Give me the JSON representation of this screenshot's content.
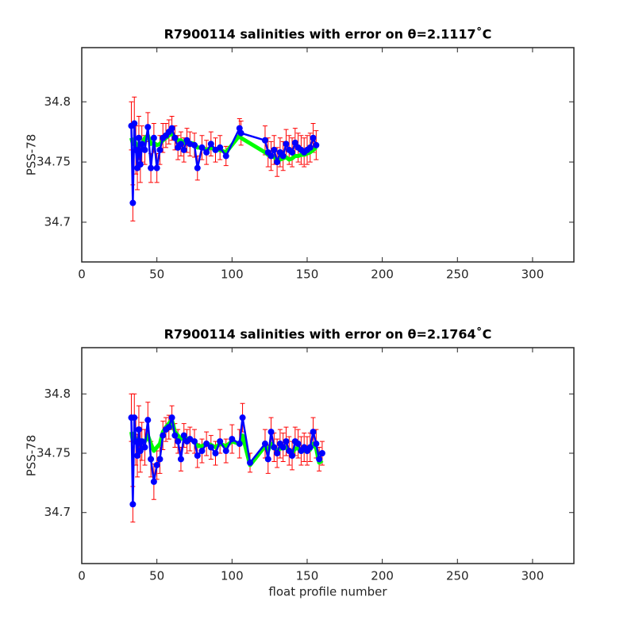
{
  "chart_data": [
    {
      "type": "line",
      "title": "R7900114 salinities with error on θ=2.1117˚C",
      "ylabel": "PSS-78",
      "x": [
        33,
        34,
        35,
        36,
        37,
        38,
        39,
        40,
        42,
        44,
        46,
        48,
        50,
        52,
        54,
        56,
        58,
        60,
        62,
        64,
        66,
        68,
        70,
        72,
        75,
        77,
        80,
        83,
        86,
        89,
        92,
        96,
        105,
        106,
        122,
        124,
        126,
        128,
        130,
        132,
        134,
        136,
        138,
        140,
        142,
        144,
        146,
        148,
        150,
        152,
        154,
        156
      ],
      "series": [
        {
          "color": "#00ff00",
          "values": [
            34.77,
            34.765,
            34.768,
            34.765,
            34.762,
            34.765,
            34.764,
            34.765,
            34.77,
            34.772,
            34.765,
            34.766,
            34.764,
            34.765,
            34.768,
            34.77,
            34.772,
            34.774,
            34.77,
            34.768,
            34.768,
            34.766,
            34.768,
            34.766,
            34.765,
            34.762,
            34.762,
            34.76,
            34.762,
            34.76,
            34.76,
            34.758,
            34.772,
            34.77,
            34.758,
            34.756,
            34.755,
            34.754,
            34.752,
            34.752,
            34.753,
            34.754,
            34.752,
            34.753,
            34.755,
            34.755,
            34.756,
            34.756,
            34.757,
            34.758,
            34.76,
            34.762
          ]
        },
        {
          "color": "#0000ff",
          "error_color": "#ff0000",
          "values": [
            34.78,
            34.716,
            34.782,
            34.76,
            34.745,
            34.77,
            34.748,
            34.765,
            34.76,
            34.779,
            34.745,
            34.77,
            34.745,
            34.76,
            34.77,
            34.772,
            34.775,
            34.778,
            34.77,
            34.762,
            34.765,
            34.76,
            34.768,
            34.765,
            34.764,
            34.745,
            34.762,
            34.758,
            34.765,
            34.76,
            34.762,
            34.755,
            34.778,
            34.774,
            34.768,
            34.758,
            34.755,
            34.76,
            34.75,
            34.758,
            34.755,
            34.765,
            34.76,
            34.758,
            34.766,
            34.762,
            34.76,
            34.758,
            34.76,
            34.762,
            34.77,
            34.764
          ],
          "errors": [
            0.02,
            0.015,
            0.022,
            0.02,
            0.018,
            0.018,
            0.015,
            0.015,
            0.012,
            0.012,
            0.012,
            0.012,
            0.012,
            0.012,
            0.012,
            0.01,
            0.01,
            0.01,
            0.01,
            0.01,
            0.01,
            0.01,
            0.01,
            0.01,
            0.01,
            0.01,
            0.01,
            0.01,
            0.01,
            0.01,
            0.01,
            0.008,
            0.008,
            0.01,
            0.012,
            0.012,
            0.012,
            0.012,
            0.012,
            0.012,
            0.012,
            0.012,
            0.012,
            0.012,
            0.012,
            0.012,
            0.012,
            0.012,
            0.012,
            0.012,
            0.012,
            0.012
          ]
        }
      ],
      "xlim": [
        0,
        327.5
      ],
      "xticks": [
        0,
        50,
        100,
        150,
        200,
        250,
        300
      ],
      "ylim": [
        34.667,
        34.845
      ],
      "yticks": [
        34.7,
        34.75,
        34.8
      ]
    },
    {
      "type": "line",
      "title": "R7900114 salinities with error on θ=2.1764˚C",
      "ylabel": "PSS-78",
      "xlabel": "float profile number",
      "x": [
        33,
        34,
        35,
        36,
        37,
        38,
        39,
        40,
        42,
        44,
        46,
        48,
        50,
        52,
        54,
        56,
        58,
        60,
        62,
        64,
        66,
        68,
        70,
        72,
        75,
        77,
        80,
        83,
        86,
        89,
        92,
        96,
        100,
        105,
        107,
        112,
        122,
        124,
        126,
        128,
        130,
        132,
        134,
        136,
        138,
        140,
        142,
        144,
        146,
        148,
        150,
        152,
        154,
        156,
        158,
        160
      ],
      "series": [
        {
          "color": "#00ff00",
          "values": [
            34.768,
            34.76,
            34.765,
            34.76,
            34.758,
            34.762,
            34.76,
            34.76,
            34.76,
            34.765,
            34.758,
            34.752,
            34.755,
            34.758,
            34.768,
            34.772,
            34.775,
            34.778,
            34.768,
            34.765,
            34.762,
            34.764,
            34.762,
            34.762,
            34.76,
            34.756,
            34.756,
            34.758,
            34.757,
            34.755,
            34.758,
            34.756,
            34.76,
            34.758,
            34.765,
            34.74,
            34.756,
            34.752,
            34.758,
            34.755,
            34.752,
            34.754,
            34.754,
            34.755,
            34.752,
            34.75,
            34.754,
            34.754,
            34.752,
            34.752,
            34.752,
            34.753,
            34.758,
            34.754,
            34.742,
            34.744
          ]
        },
        {
          "color": "#0000ff",
          "error_color": "#ff0000",
          "values": [
            34.78,
            34.707,
            34.78,
            34.76,
            34.748,
            34.77,
            34.752,
            34.76,
            34.755,
            34.778,
            34.745,
            34.726,
            34.74,
            34.745,
            34.765,
            34.77,
            34.772,
            34.78,
            34.765,
            34.76,
            34.745,
            34.765,
            34.76,
            34.762,
            34.76,
            34.748,
            34.752,
            34.758,
            34.755,
            34.75,
            34.76,
            34.752,
            34.762,
            34.758,
            34.78,
            34.742,
            34.758,
            34.745,
            34.768,
            34.755,
            34.75,
            34.758,
            34.755,
            34.76,
            34.752,
            34.748,
            34.76,
            34.758,
            34.752,
            34.755,
            34.752,
            34.755,
            34.768,
            34.758,
            34.745,
            34.75
          ],
          "errors": [
            0.02,
            0.015,
            0.02,
            0.02,
            0.018,
            0.02,
            0.018,
            0.016,
            0.015,
            0.015,
            0.015,
            0.015,
            0.012,
            0.012,
            0.012,
            0.01,
            0.01,
            0.01,
            0.01,
            0.01,
            0.01,
            0.01,
            0.01,
            0.01,
            0.01,
            0.01,
            0.01,
            0.01,
            0.01,
            0.01,
            0.01,
            0.01,
            0.012,
            0.012,
            0.012,
            0.008,
            0.012,
            0.012,
            0.012,
            0.012,
            0.012,
            0.012,
            0.012,
            0.012,
            0.012,
            0.012,
            0.012,
            0.012,
            0.012,
            0.012,
            0.012,
            0.012,
            0.012,
            0.012,
            0.01,
            0.01
          ]
        }
      ],
      "xlim": [
        0,
        327.5
      ],
      "xticks": [
        0,
        50,
        100,
        150,
        200,
        250,
        300
      ],
      "ylim": [
        34.657,
        34.839
      ],
      "yticks": [
        34.7,
        34.75,
        34.8
      ]
    }
  ]
}
